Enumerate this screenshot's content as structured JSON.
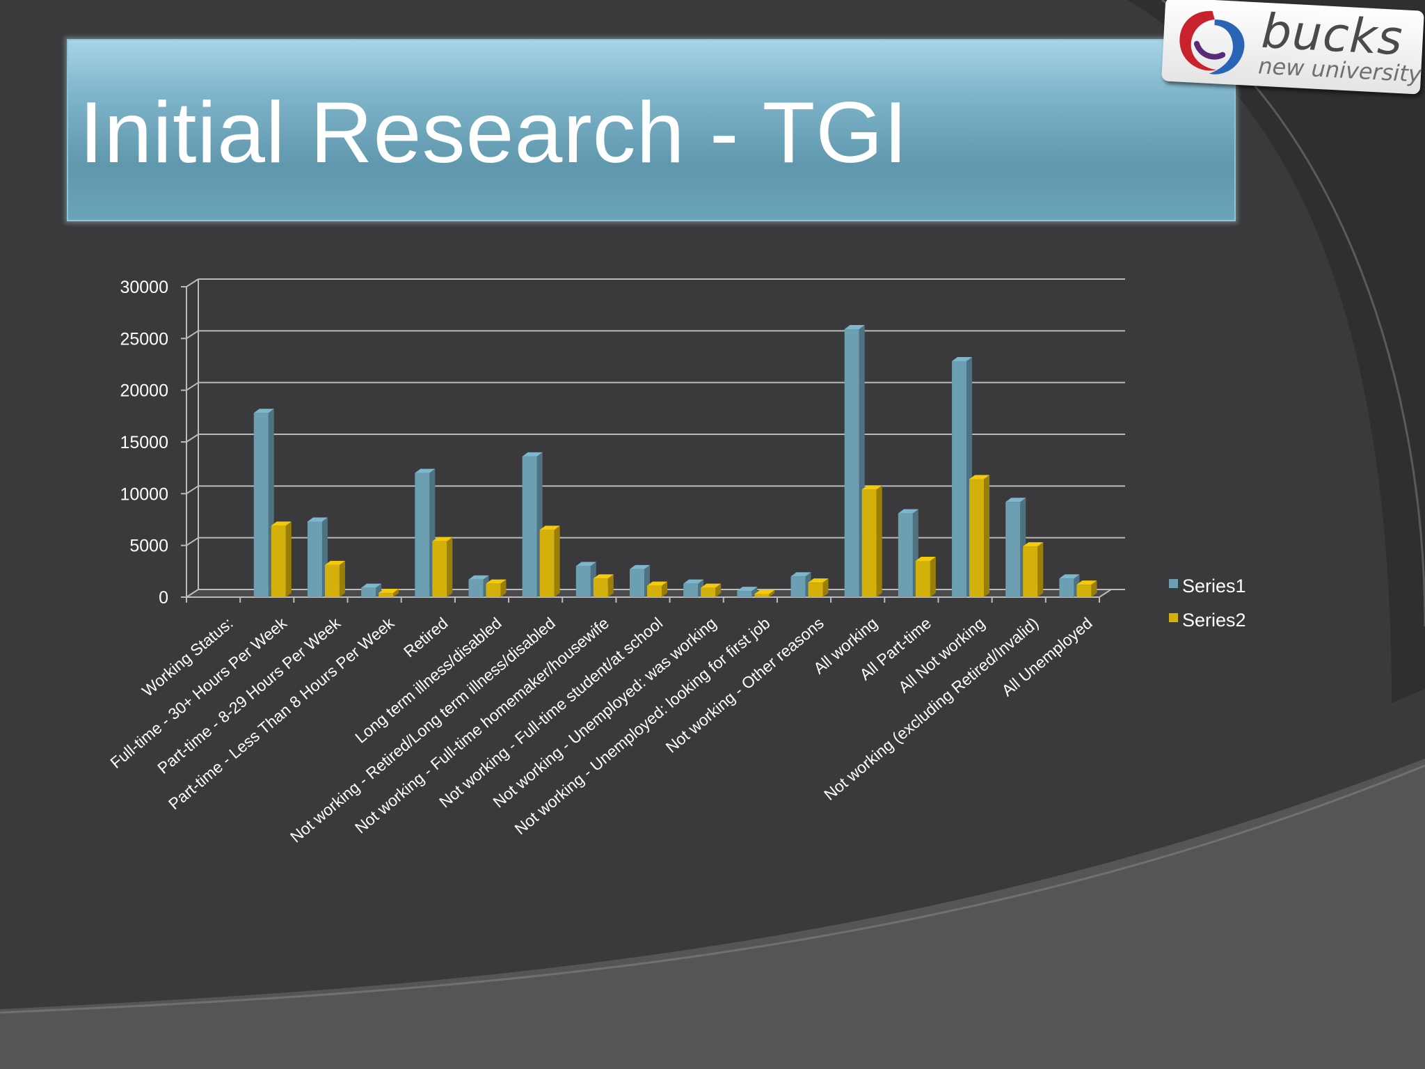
{
  "slide": {
    "title": "Initial Research - TGI"
  },
  "logo": {
    "word": "bucks",
    "sub": "new university",
    "colors": {
      "red": "#c8232c",
      "blue": "#2a64b4"
    }
  },
  "colors": {
    "background": "#3a3a3c",
    "title_bar": "#6aa4bb",
    "series1": "#6d9fb3",
    "series2": "#d4b00a",
    "grid": "#bcbcbc"
  },
  "chart_data": {
    "type": "bar",
    "categories": [
      "Working Status:",
      "Full-time - 30+ Hours Per Week",
      "Part-time - 8-29 Hours Per Week",
      "Part-time - Less Than 8 Hours Per Week",
      "Retired",
      "Long term illness/disabled",
      "Not working - Retired/Long term illness/disabled",
      "Not working - Full-time homemaker/housewife",
      "Not working - Full-time student/at school",
      "Not working - Unemployed: was working",
      "Not working - Unemployed: looking for first job",
      "Not working - Other reasons",
      "All working",
      "All Part-time",
      "All Not working",
      "Not working (excluding Retired/Invalid)",
      "All Unemployed"
    ],
    "series": [
      {
        "name": "Series1",
        "values": [
          0,
          17800,
          7300,
          900,
          12000,
          1700,
          13600,
          3000,
          2700,
          1300,
          600,
          2000,
          25900,
          8100,
          22800,
          9200,
          1800
        ]
      },
      {
        "name": "Series2",
        "values": [
          0,
          6900,
          3100,
          400,
          5400,
          1300,
          6500,
          1800,
          1100,
          900,
          300,
          1400,
          10400,
          3500,
          11400,
          4900,
          1200
        ]
      }
    ],
    "yticks": [
      "0",
      "5000",
      "10000",
      "15000",
      "20000",
      "25000",
      "30000"
    ],
    "ylim": [
      0,
      30000
    ],
    "grid": true,
    "legend_position": "right",
    "style": "3d-column"
  }
}
